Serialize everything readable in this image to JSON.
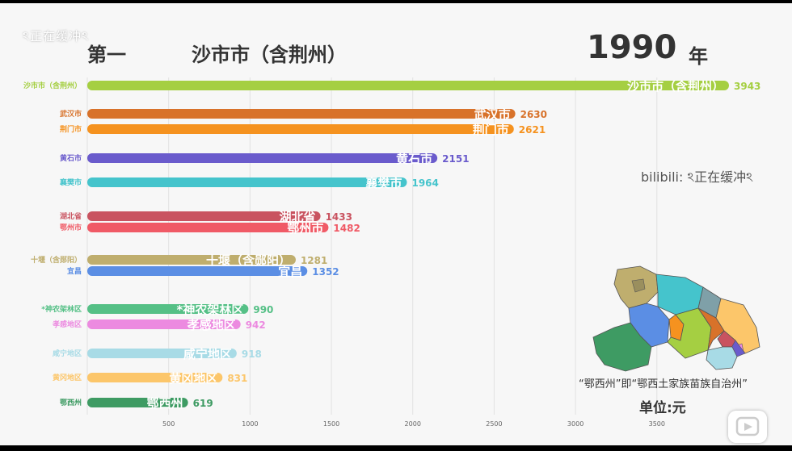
{
  "overlay": {
    "watermark_top_left": "ঽ正在缓冲ঽ",
    "watermark_right": "bilibili: ঽ正在缓冲ঽ"
  },
  "header": {
    "rank_label": "第一",
    "leader_name": "沙市市（含荆州）",
    "year": "1990",
    "year_suffix": "年"
  },
  "footer": {
    "note": "“鄂西州”即“鄂西土家族苗族自治州”",
    "unit": "单位:元"
  },
  "colors": {
    "grid": "#e2e2e2",
    "axis_text": "#666666",
    "background": "#f7f7f7"
  },
  "chart_data": {
    "type": "bar",
    "orientation": "horizontal",
    "title": "",
    "xlabel": "",
    "ylabel": "",
    "xlim": [
      0,
      3943
    ],
    "x_ticks": [
      500,
      1000,
      1500,
      2000,
      2500,
      3000,
      3500
    ],
    "grid": true,
    "categories": [
      "沙市市（含荆州）",
      "武汉市",
      "荆门市",
      "黄石市",
      "襄樊市",
      "湖北省",
      "鄂州市",
      "十堰（含郧阳）",
      "宜昌",
      "*神农架林区",
      "孝感地区",
      "咸宁地区",
      "黄冈地区",
      "鄂西州"
    ],
    "bar_labels": [
      "沙市市（含荆州）",
      "武汉市",
      "荆门市",
      "黄石市",
      "襄樊市",
      "湖北省",
      "鄂州市",
      "十堰（含郧阳）",
      "宜昌",
      "*神农架林区",
      "孝感地区",
      "咸宁地区",
      "黄冈地区",
      "鄂西州"
    ],
    "values": [
      3943,
      2630,
      2621,
      2151,
      1964,
      1433,
      1482,
      1281,
      1352,
      990,
      942,
      918,
      831,
      619
    ],
    "value_labels": [
      "3943",
      "2630",
      "2621",
      "2151",
      "1964",
      "1433",
      "1482",
      "1281",
      "1352",
      "990",
      "942",
      "918",
      "831",
      "619"
    ],
    "colors": [
      "#a5cf42",
      "#d8722a",
      "#f5921f",
      "#6a5bcc",
      "#45c4cc",
      "#c95360",
      "#f05a66",
      "#bfae6e",
      "#5b8ee4",
      "#55c086",
      "#ec8ae0",
      "#a8dbe6",
      "#fcc66a",
      "#3e9b63"
    ]
  }
}
